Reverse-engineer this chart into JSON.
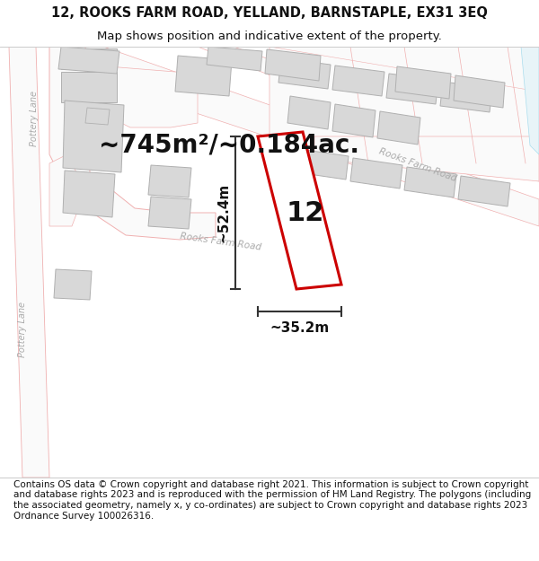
{
  "title_line1": "12, ROOKS FARM ROAD, YELLAND, BARNSTAPLE, EX31 3EQ",
  "title_line2": "Map shows position and indicative extent of the property.",
  "footer_text": "Contains OS data © Crown copyright and database right 2021. This information is subject to Crown copyright and database rights 2023 and is reproduced with the permission of HM Land Registry. The polygons (including the associated geometry, namely x, y co-ordinates) are subject to Crown copyright and database rights 2023 Ordnance Survey 100026316.",
  "area_label": "~745m²/~0.184ac.",
  "number_label": "12",
  "dim_width": "~35.2m",
  "dim_height": "~52.4m",
  "road_label_lower": "Rooks Farm Road",
  "road_label_upper": "Rooks Farm Road",
  "road_label_pottery_upper": "Pottery Lane",
  "road_label_pottery_lower": "Pottery Lane",
  "map_bg": "#f8f8f8",
  "header_bg": "#ffffff",
  "footer_bg": "#ffffff",
  "building_fill": "#d8d8d8",
  "building_edge": "#b0b0b0",
  "road_outline": "#f0b8b8",
  "plot_stroke": "#cc0000",
  "plot_fill": "#ffffff",
  "dim_line_color": "#333333",
  "title_fontsize": 10.5,
  "subtitle_fontsize": 9.5,
  "footer_fontsize": 7.5,
  "area_fontsize": 20,
  "number_fontsize": 22,
  "dim_fontsize": 11
}
